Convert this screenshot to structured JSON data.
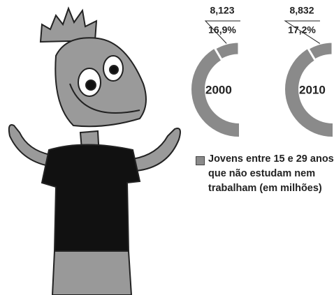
{
  "chart_data": [
    {
      "type": "pie",
      "title": "2000",
      "values": [
        16.9
      ],
      "value_labels": [
        "16,9%"
      ],
      "counts": [
        8.123
      ],
      "count_labels": [
        "8,123"
      ],
      "color": "#8a8a8a"
    },
    {
      "type": "pie",
      "title": "2010",
      "values": [
        17.2
      ],
      "value_labels": [
        "17,2%"
      ],
      "counts": [
        8.832
      ],
      "count_labels": [
        "8,832"
      ],
      "color": "#8a8a8a"
    }
  ],
  "legend": {
    "label": "Jovens entre 15 e 29 anos que não estudam nem trabalham (em milhões)",
    "color": "#8a8a8a"
  }
}
